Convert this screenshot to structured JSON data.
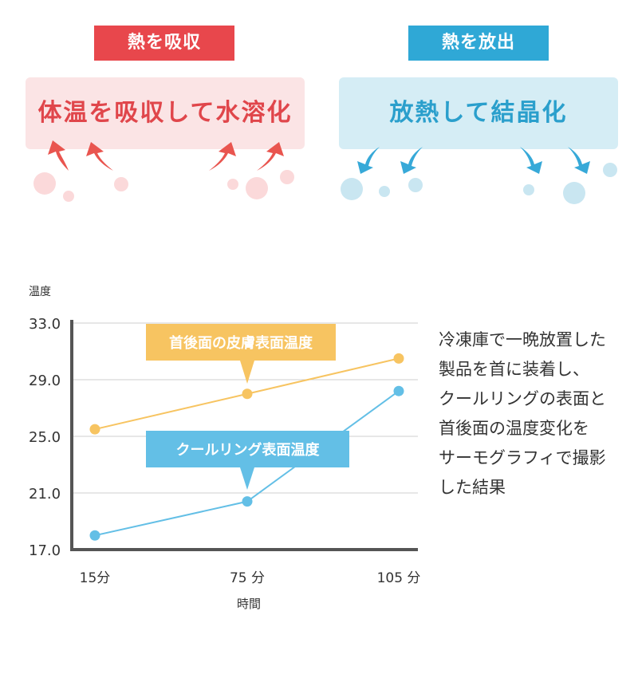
{
  "absorb": {
    "tag": "熱を吸収",
    "box": "体温を吸収して水溶化",
    "colors": {
      "tag": "#e8474c",
      "box": "#fbe4e5",
      "text": "#e0464b",
      "arrow": "#e9554f",
      "bubble": "#fbd9da"
    }
  },
  "release": {
    "tag": "熱を放出",
    "box": "放熱して結晶化",
    "colors": {
      "tag": "#2fa8d6",
      "box": "#d5edf5",
      "text": "#2a9fcc",
      "arrow": "#37a9d8",
      "bubble": "#c9e6f1"
    }
  },
  "note_lines": [
    "冷凍庫で一晩放置した",
    "製品を首に装着し、",
    "クールリングの表面と",
    "首後面の温度変化を",
    "サーモグラフィで撮影",
    "した結果"
  ],
  "chart_data": {
    "type": "line",
    "ylabel": "温度",
    "xlabel": "時間",
    "x": [
      15,
      75,
      105
    ],
    "tick_labels_x": [
      "15分",
      "75 分",
      "105 分"
    ],
    "ylim": [
      17.0,
      33.0
    ],
    "yticks": [
      "17.0",
      "21.0",
      "25.0",
      "29.0",
      "33.0"
    ],
    "grid": true,
    "series": [
      {
        "name": "首後面の皮膚表面温度",
        "values": [
          25.5,
          28.0,
          30.5
        ],
        "color": "#f7c461"
      },
      {
        "name": "クールリング表面温度",
        "values": [
          18.0,
          20.4,
          28.2
        ],
        "color": "#63bfe6"
      }
    ]
  }
}
